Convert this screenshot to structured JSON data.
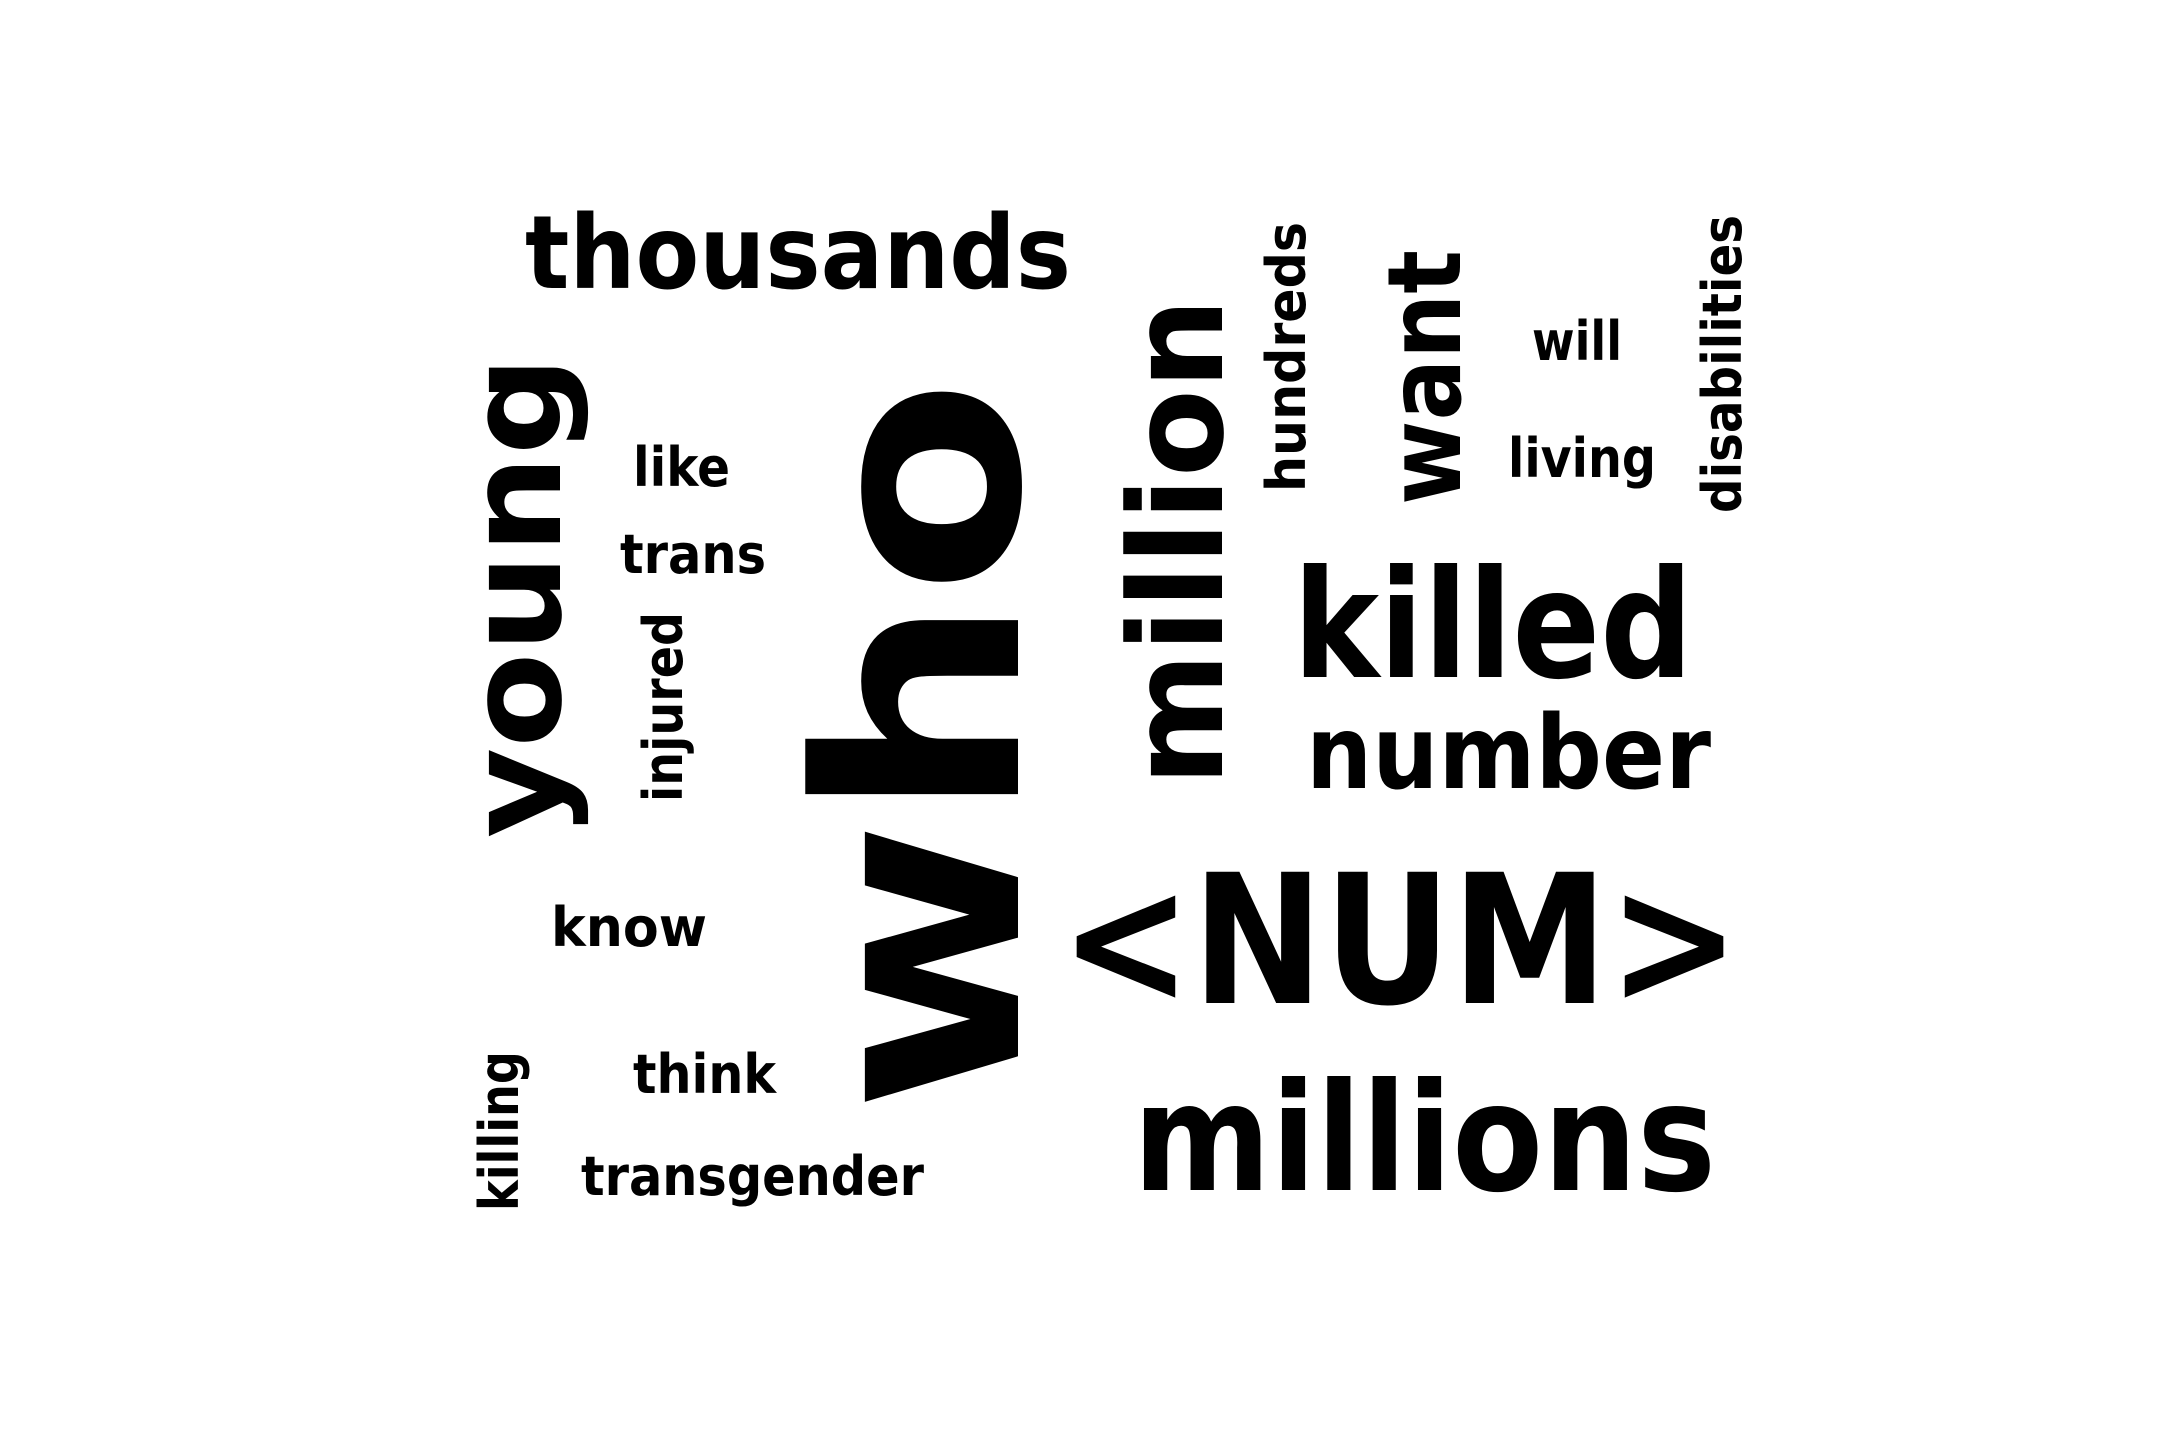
{
  "word_cloud": {
    "text_color": "#000000",
    "background_color": "#ffffff",
    "words": [
      {
        "id": "who",
        "text": "who",
        "orientation": "vertical"
      },
      {
        "id": "num",
        "text": "<NUM>",
        "orientation": "horizontal"
      },
      {
        "id": "million",
        "text": "million",
        "orientation": "vertical"
      },
      {
        "id": "millions",
        "text": "millions",
        "orientation": "horizontal"
      },
      {
        "id": "killed",
        "text": "killed",
        "orientation": "horizontal"
      },
      {
        "id": "young",
        "text": "young",
        "orientation": "vertical"
      },
      {
        "id": "thousands",
        "text": "thousands",
        "orientation": "horizontal"
      },
      {
        "id": "number",
        "text": "number",
        "orientation": "horizontal"
      },
      {
        "id": "want",
        "text": "want",
        "orientation": "vertical"
      },
      {
        "id": "hundreds",
        "text": "hundreds",
        "orientation": "vertical"
      },
      {
        "id": "disabilities",
        "text": "disabilities",
        "orientation": "vertical"
      },
      {
        "id": "injured",
        "text": "injured",
        "orientation": "vertical"
      },
      {
        "id": "killing",
        "text": "killing",
        "orientation": "vertical"
      },
      {
        "id": "transgender",
        "text": "transgender",
        "orientation": "horizontal"
      },
      {
        "id": "think",
        "text": "think",
        "orientation": "horizontal"
      },
      {
        "id": "know",
        "text": "know",
        "orientation": "horizontal"
      },
      {
        "id": "trans",
        "text": "trans",
        "orientation": "horizontal"
      },
      {
        "id": "like",
        "text": "like",
        "orientation": "horizontal"
      },
      {
        "id": "living",
        "text": "living",
        "orientation": "horizontal"
      },
      {
        "id": "will",
        "text": "will",
        "orientation": "horizontal"
      }
    ]
  }
}
